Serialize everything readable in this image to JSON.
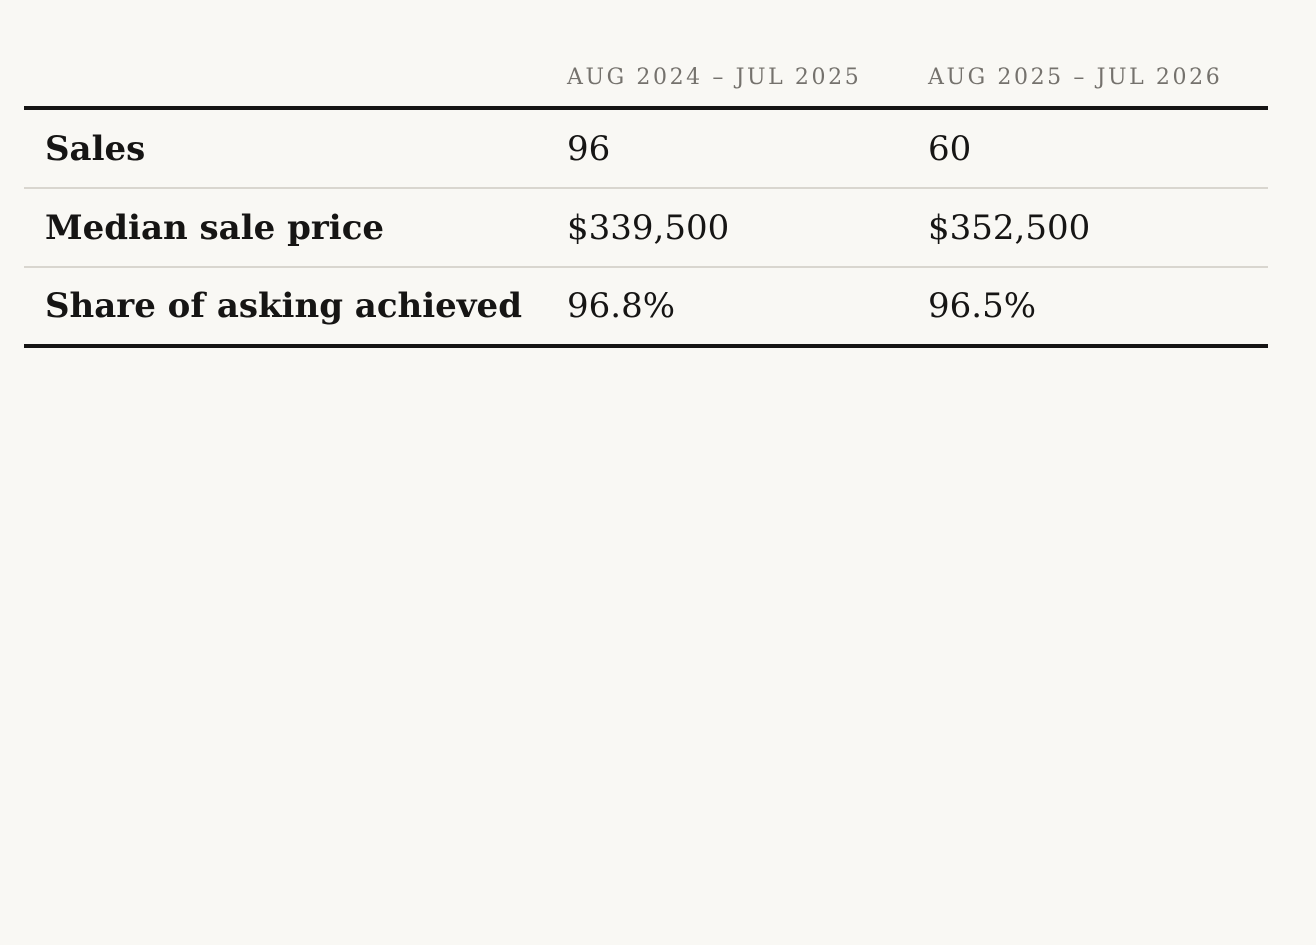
{
  "table": {
    "columns": [
      "",
      "AUG 2024 – JUL 2025",
      "AUG 2025 – JUL 2026"
    ],
    "rows": [
      {
        "label": "Sales",
        "period_1": "96",
        "period_2": "60"
      },
      {
        "label": "Median sale price",
        "period_1": "$339,500",
        "period_2": "$352,500"
      },
      {
        "label": "Share of asking achieved",
        "period_1": "96.8%",
        "period_2": "96.5%"
      }
    ]
  },
  "colors": {
    "background": "#f9f8f4",
    "text": "#161514",
    "header_text": "#75726d",
    "rule_heavy": "#161514",
    "rule_light": "#d9d6cf"
  }
}
